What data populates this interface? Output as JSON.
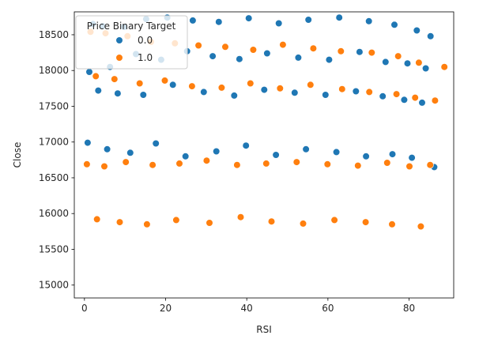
{
  "chart_data": {
    "type": "scatter",
    "title": "",
    "xlabel": "RSI",
    "ylabel": "Close",
    "xlim": [
      -2.5,
      91
    ],
    "ylim": [
      14820,
      18820
    ],
    "xticks": [
      0,
      20,
      40,
      60,
      80
    ],
    "yticks": [
      15000,
      15500,
      16000,
      16500,
      17000,
      17500,
      18000,
      18500
    ],
    "xtick_labels": [
      "0",
      "20",
      "40",
      "60",
      "80"
    ],
    "ytick_labels": [
      "15000",
      "15500",
      "16000",
      "16500",
      "17000",
      "17500",
      "18000",
      "18500"
    ],
    "grid": false,
    "legend": {
      "title": "Price Binary Target",
      "placement": "top-left",
      "entries": [
        "0.0",
        "1.0"
      ]
    },
    "colors": [
      "#1f77b4",
      "#ff7f0e"
    ],
    "series": [
      {
        "name": "0.0",
        "color": "#1f77b4",
        "x": [
          2.1,
          4.5,
          9.8,
          15.2,
          20.4,
          26.7,
          33.1,
          40.5,
          47.9,
          55.2,
          62.8,
          70.1,
          76.4,
          81.9,
          85.3,
          1.2,
          6.3,
          12.7,
          18.9,
          25.3,
          31.6,
          38.2,
          45.0,
          52.7,
          60.3,
          67.8,
          74.2,
          79.6,
          84.1,
          3.4,
          8.2,
          14.5,
          21.8,
          29.4,
          36.9,
          44.3,
          51.8,
          59.4,
          66.9,
          73.5,
          78.8,
          83.2,
          0.8,
          5.6,
          11.3,
          17.6,
          24.9,
          32.5,
          39.8,
          47.2,
          54.6,
          62.1,
          69.4,
          75.9,
          80.7,
          86.2
        ],
        "y": [
          18650,
          18620,
          18610,
          18720,
          18740,
          18700,
          18680,
          18730,
          18660,
          18710,
          18740,
          18690,
          18640,
          18560,
          18480,
          17980,
          18050,
          18230,
          18150,
          18270,
          18200,
          18160,
          18240,
          18180,
          18150,
          18260,
          18120,
          18100,
          18030,
          17720,
          17680,
          17660,
          17800,
          17700,
          17650,
          17730,
          17690,
          17660,
          17710,
          17640,
          17590,
          17550,
          16990,
          16900,
          16850,
          16980,
          16800,
          16870,
          16950,
          16820,
          16900,
          16860,
          16800,
          16830,
          16780,
          16650
        ]
      },
      {
        "name": "1.0",
        "color": "#ff7f0e",
        "x": [
          1.5,
          5.2,
          10.6,
          16.4,
          22.3,
          28.1,
          34.7,
          41.6,
          48.9,
          56.4,
          63.2,
          70.8,
          77.3,
          82.4,
          88.7,
          2.8,
          7.4,
          13.6,
          19.8,
          26.5,
          33.8,
          40.9,
          48.2,
          55.7,
          63.5,
          70.2,
          76.9,
          81.5,
          86.4,
          0.6,
          4.9,
          10.2,
          16.8,
          23.4,
          30.1,
          37.6,
          44.8,
          52.3,
          59.9,
          67.4,
          74.6,
          80.1,
          85.2,
          3.1,
          8.7,
          15.4,
          22.6,
          30.8,
          38.5,
          46.1,
          53.9,
          61.6,
          69.3,
          75.8,
          82.9
        ],
        "y": [
          18540,
          18520,
          18480,
          18400,
          18380,
          18350,
          18330,
          18290,
          18360,
          18310,
          18270,
          18250,
          18200,
          18110,
          18050,
          17920,
          17880,
          17820,
          17860,
          17780,
          17760,
          17820,
          17750,
          17800,
          17740,
          17700,
          17670,
          17620,
          17580,
          16690,
          16660,
          16720,
          16680,
          16700,
          16740,
          16680,
          16700,
          16720,
          16690,
          16670,
          16710,
          16660,
          16680,
          15920,
          15880,
          15850,
          15910,
          15870,
          15950,
          15890,
          15860,
          15910,
          15880,
          15850,
          15820
        ]
      }
    ]
  }
}
